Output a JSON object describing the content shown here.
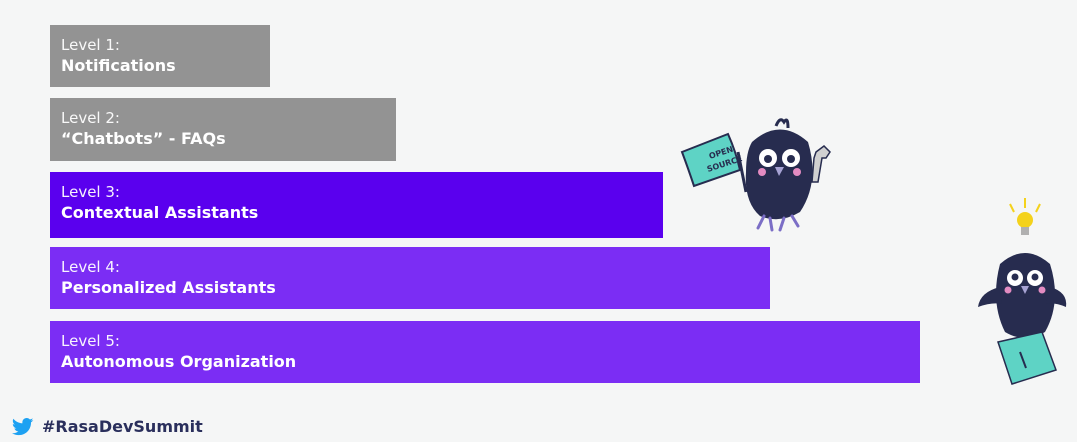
{
  "levels": [
    {
      "level": "Level 1:",
      "name": "Notifications",
      "color": "#939393"
    },
    {
      "level": "Level 2:",
      "name": "“Chatbots” - FAQs",
      "color": "#939393"
    },
    {
      "level": "Level 3:",
      "name": "Contextual Assistants",
      "color": "#5a00ee"
    },
    {
      "level": "Level 4:",
      "name": "Personalized Assistants",
      "color": "#7b2df4"
    },
    {
      "level": "Level 5:",
      "name": "Autonomous Organization",
      "color": "#7b2df4"
    }
  ],
  "mascots": {
    "flag_text": [
      "OPEN",
      "SOURCE"
    ]
  },
  "footer": {
    "icon": "twitter-bird-icon",
    "hashtag": "#RasaDevSummit"
  },
  "colors": {
    "background": "#f5f6f6",
    "gray_bar": "#939393",
    "purple_dark": "#5a00ee",
    "purple": "#7b2df4",
    "twitter_blue": "#1da1f2",
    "mascot_navy": "#272c4f",
    "teal": "#5ed3c5"
  }
}
